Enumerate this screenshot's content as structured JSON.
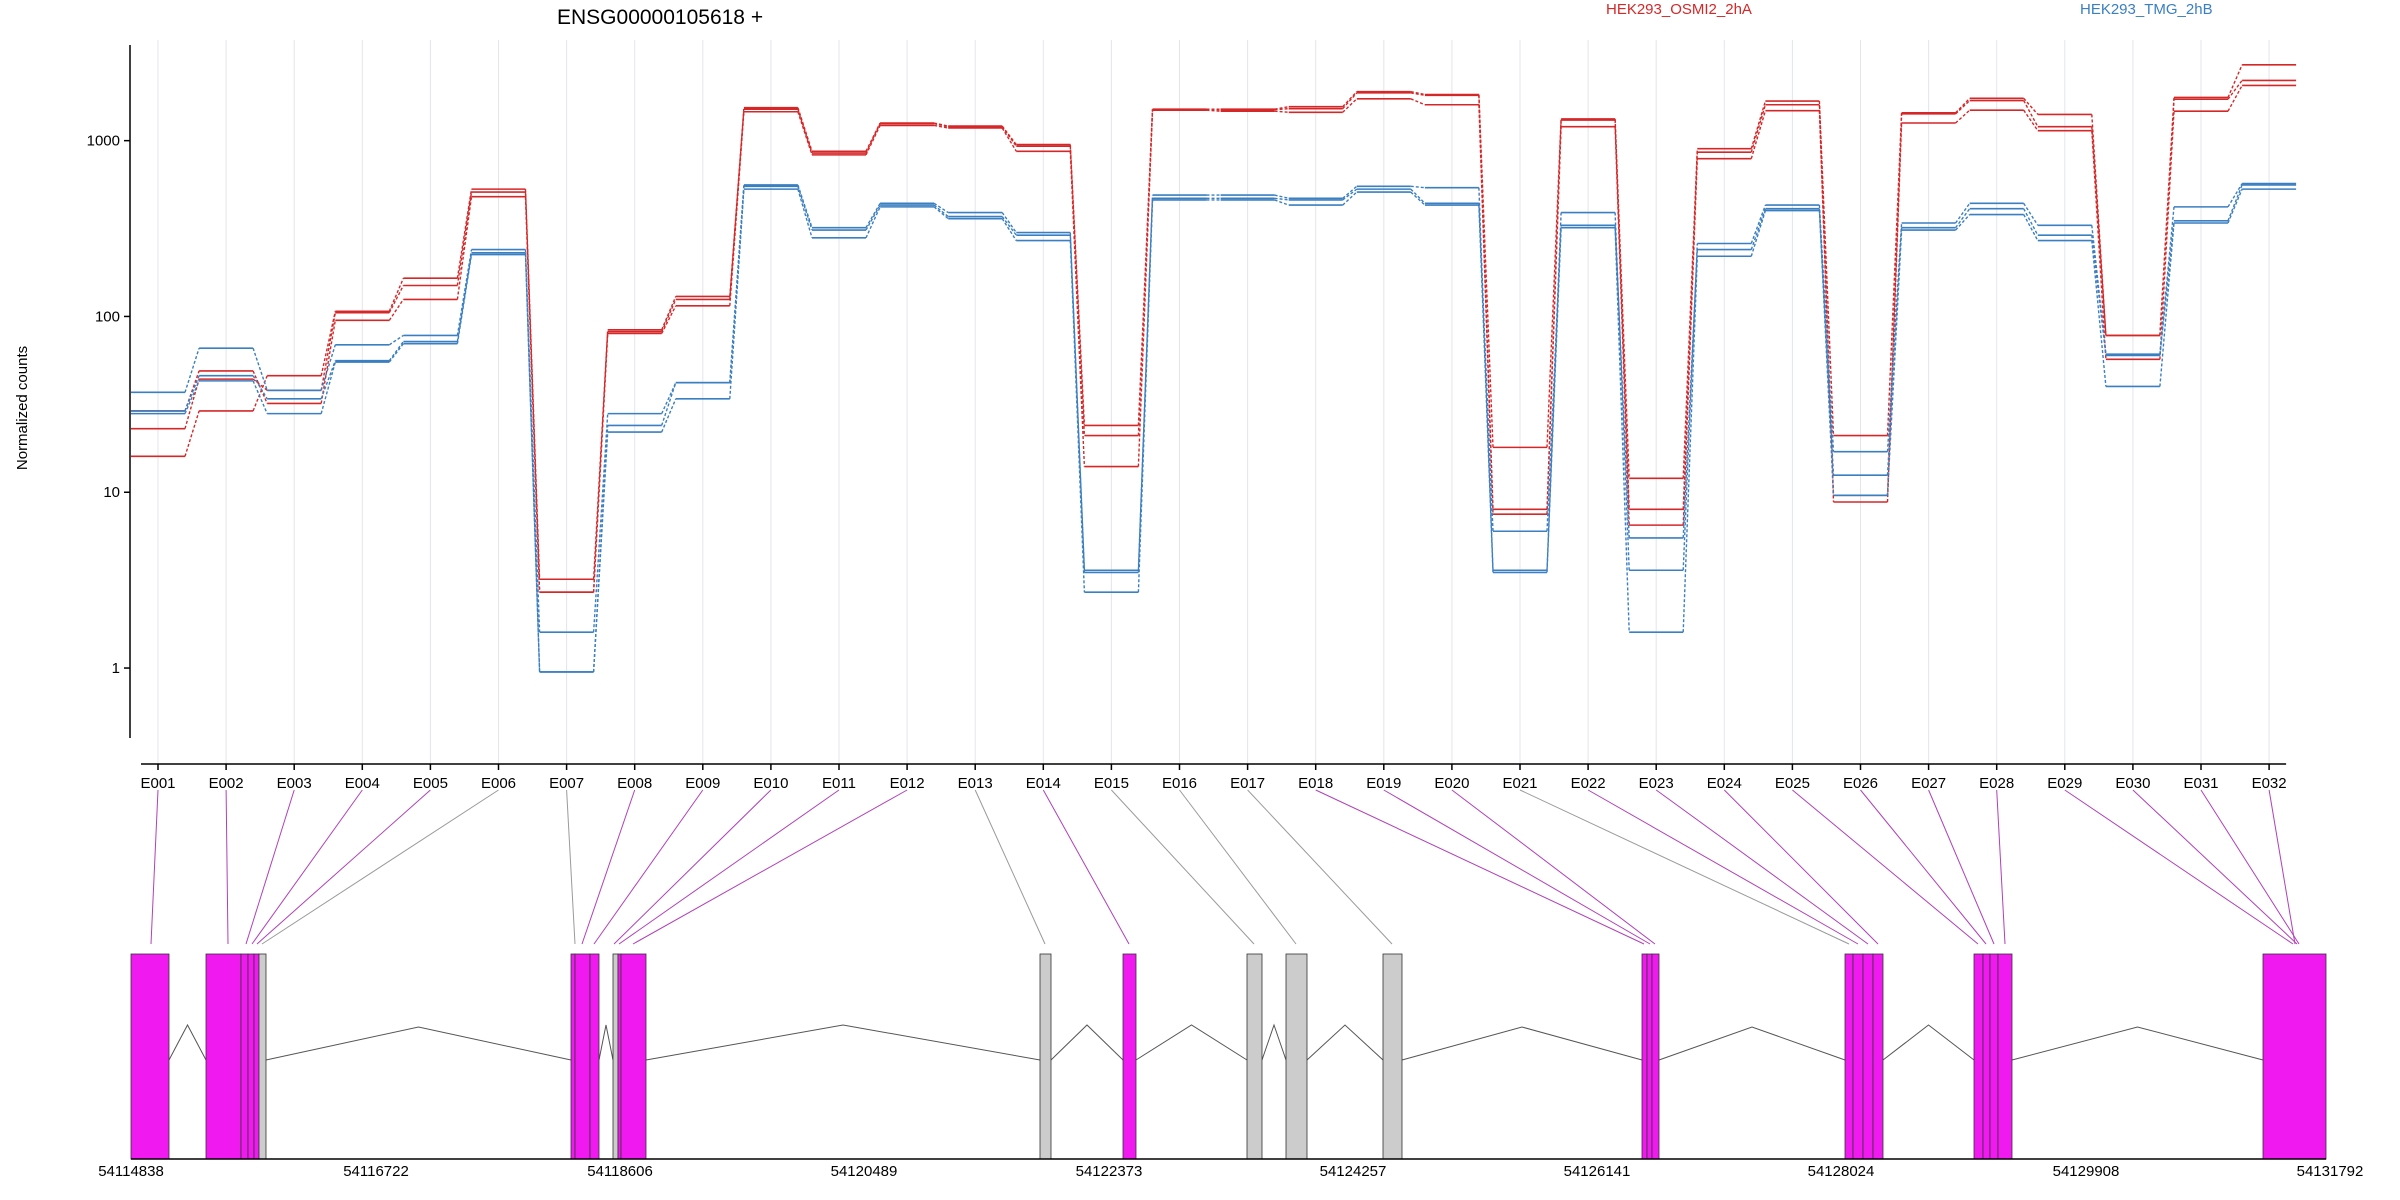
{
  "chart_data": {
    "type": "line",
    "title": "ENSG00000105618 +",
    "ylabel": "Normalized counts",
    "xlabel": "",
    "yscale": "log",
    "ylim": [
      0.4,
      3500
    ],
    "yticks": [
      "1",
      "10",
      "100",
      "1000"
    ],
    "categories": [
      "E001",
      "E002",
      "E003",
      "E004",
      "E005",
      "E006",
      "E007",
      "E008",
      "E009",
      "E010",
      "E011",
      "E012",
      "E013",
      "E014",
      "E015",
      "E016",
      "E017",
      "E018",
      "E019",
      "E020",
      "E021",
      "E022",
      "E023",
      "E024",
      "E025",
      "E026",
      "E027",
      "E028",
      "E029",
      "E030",
      "E031",
      "E032"
    ],
    "legend": [
      {
        "label": "HEK293_OSMI2_2hA",
        "color": "#d62728"
      },
      {
        "label": "HEK293_TMG_2hB",
        "color": "#3a7fc1"
      }
    ],
    "series": [
      {
        "group": 0,
        "color": "#d62728",
        "values": [
          16,
          29,
          46,
          107,
          165,
          530,
          3.2,
          84,
          130,
          1540,
          870,
          1260,
          1210,
          950,
          24,
          1510,
          1510,
          1560,
          1900,
          1830,
          18,
          1330,
          12,
          900,
          1680,
          21,
          1440,
          1740,
          1410,
          78,
          1760,
          2700
        ]
      },
      {
        "group": 0,
        "color": "#d62728",
        "values": [
          23,
          44,
          38,
          105,
          150,
          510,
          2.7,
          82,
          125,
          1510,
          850,
          1250,
          1200,
          930,
          21,
          1500,
          1500,
          1520,
          1870,
          1810,
          8,
          1310,
          8,
          860,
          1600,
          9.6,
          1420,
          1690,
          1200,
          78,
          1720,
          2200
        ]
      },
      {
        "group": 0,
        "color": "#d62728",
        "values": [
          29,
          49,
          32,
          95,
          125,
          480,
          2.7,
          80,
          115,
          1460,
          830,
          1220,
          1180,
          870,
          14,
          1490,
          1470,
          1450,
          1730,
          1600,
          7.5,
          1200,
          6.5,
          790,
          1480,
          8.8,
          1260,
          1490,
          1140,
          57,
          1470,
          2060
        ]
      },
      {
        "group": 1,
        "color": "#3a7fc1",
        "values": [
          37,
          66,
          38,
          69,
          78,
          240,
          1.6,
          28,
          42,
          560,
          320,
          440,
          390,
          300,
          3.6,
          490,
          490,
          470,
          550,
          540,
          3.6,
          390,
          3.6,
          260,
          430,
          17,
          340,
          440,
          330,
          61,
          420,
          570
        ]
      },
      {
        "group": 1,
        "color": "#3a7fc1",
        "values": [
          29,
          46,
          34,
          56,
          72,
          230,
          0.95,
          24,
          42,
          550,
          310,
          430,
          370,
          290,
          3.5,
          470,
          470,
          460,
          530,
          440,
          6,
          330,
          5.5,
          240,
          410,
          12.5,
          320,
          410,
          290,
          60,
          350,
          560
        ]
      },
      {
        "group": 1,
        "color": "#3a7fc1",
        "values": [
          28,
          43,
          28,
          55,
          70,
          225,
          0.95,
          22,
          34,
          530,
          280,
          420,
          360,
          270,
          2.7,
          460,
          460,
          430,
          510,
          430,
          3.5,
          320,
          1.6,
          220,
          400,
          9.6,
          310,
          380,
          270,
          40,
          340,
          530
        ]
      }
    ],
    "gene_model": {
      "coord_labels": [
        "54114838",
        "54116722",
        "54118606",
        "54120489",
        "54122373",
        "54124257",
        "54126141",
        "54128024",
        "54129908",
        "54131792"
      ],
      "exon_link_color": "#b040b8",
      "exon_highlight_color": "#f01af0",
      "exon_plain_color": "#cccccc"
    }
  }
}
